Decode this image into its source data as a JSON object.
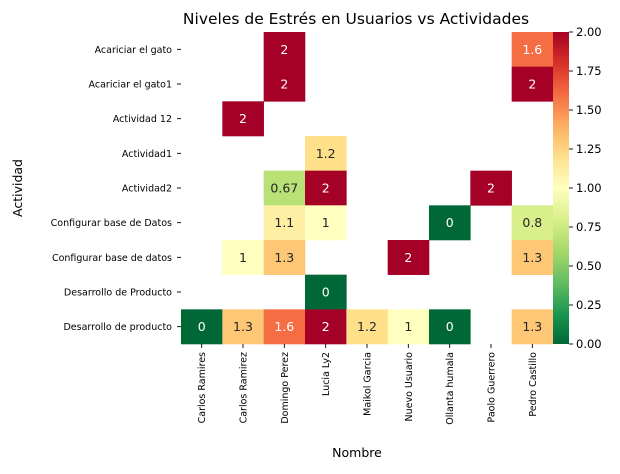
{
  "chart_data": {
    "type": "heatmap",
    "title": "Niveles de Estrés en Usuarios vs Actividades",
    "xlabel": "Nombre",
    "ylabel": "Actividad",
    "x_categories": [
      "Carlos Ramires",
      "Carlos Ramirez",
      "Domingo Perez",
      "Lucia Ly2",
      "Maikol Garcia",
      "Nuevo Usuario",
      "Ollanta humala",
      "Paolo Guerrero",
      "Pedro Castillo"
    ],
    "y_categories": [
      "Acariciar el gato",
      "Acariciar el gato1",
      "Actividad 12",
      "Actividad1",
      "Actividad2",
      "Configurar base de Datos",
      "Configurar base de datos",
      "Desarrollo de Producto",
      "Desarrollo de producto"
    ],
    "values": [
      [
        null,
        null,
        2,
        null,
        null,
        null,
        null,
        null,
        1.6
      ],
      [
        null,
        null,
        2,
        null,
        null,
        null,
        null,
        null,
        2
      ],
      [
        null,
        2,
        null,
        null,
        null,
        null,
        null,
        null,
        null
      ],
      [
        null,
        null,
        null,
        1.2,
        null,
        null,
        null,
        null,
        null
      ],
      [
        null,
        null,
        0.67,
        2,
        null,
        null,
        null,
        2,
        null
      ],
      [
        null,
        null,
        1.1,
        1,
        null,
        null,
        0,
        null,
        0.8
      ],
      [
        null,
        1,
        1.3,
        null,
        null,
        2,
        null,
        null,
        1.3
      ],
      [
        null,
        null,
        null,
        0,
        null,
        null,
        null,
        null,
        null
      ],
      [
        0,
        1.3,
        1.6,
        2,
        1.2,
        1,
        0,
        null,
        1.3
      ]
    ],
    "labels": [
      [
        null,
        null,
        "2",
        null,
        null,
        null,
        null,
        null,
        "1.6"
      ],
      [
        null,
        null,
        "2",
        null,
        null,
        null,
        null,
        null,
        "2"
      ],
      [
        null,
        "2",
        null,
        null,
        null,
        null,
        null,
        null,
        null
      ],
      [
        null,
        null,
        null,
        "1.2",
        null,
        null,
        null,
        null,
        null
      ],
      [
        null,
        null,
        "0.67",
        "2",
        null,
        null,
        null,
        "2",
        null
      ],
      [
        null,
        null,
        "1.1",
        "1",
        null,
        null,
        "0",
        null,
        "0.8"
      ],
      [
        null,
        "1",
        "1.3",
        null,
        null,
        "2",
        null,
        null,
        "1.3"
      ],
      [
        null,
        null,
        null,
        "0",
        null,
        null,
        null,
        null,
        null
      ],
      [
        "0",
        "1.3",
        "1.6",
        "2",
        "1.2",
        "1",
        "0",
        null,
        "1.3"
      ]
    ],
    "colormap": "RdYlGn_r",
    "vmin": 0,
    "vmax": 2,
    "colorbar_ticks": [
      "0.00",
      "0.25",
      "0.50",
      "0.75",
      "1.00",
      "1.25",
      "1.50",
      "1.75",
      "2.00"
    ]
  }
}
